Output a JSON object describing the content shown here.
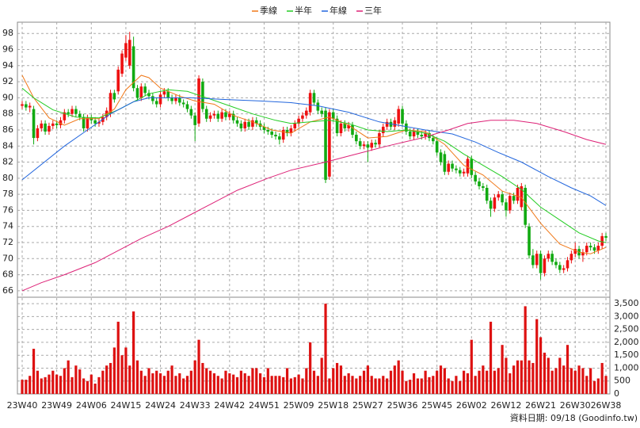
{
  "chart_data": {
    "type": "candlestick",
    "categories": [
      "23W40",
      null,
      null,
      null,
      null,
      null,
      null,
      null,
      null,
      "23W49",
      null,
      null,
      null,
      null,
      null,
      null,
      null,
      null,
      "24W06",
      null,
      null,
      null,
      null,
      null,
      null,
      null,
      null,
      "24W15",
      null,
      null,
      null,
      null,
      null,
      null,
      null,
      null,
      "24W24",
      null,
      null,
      null,
      null,
      null,
      null,
      null,
      null,
      "24W33",
      null,
      null,
      null,
      null,
      null,
      null,
      null,
      null,
      "24W42",
      null,
      null,
      null,
      null,
      null,
      null,
      null,
      null,
      "24W51",
      null,
      null,
      null,
      null,
      null,
      null,
      null,
      null,
      "25W09",
      null,
      null,
      null,
      null,
      null,
      null,
      null,
      null,
      "25W18",
      null,
      null,
      null,
      null,
      null,
      null,
      null,
      null,
      "25W27",
      null,
      null,
      null,
      null,
      null,
      null,
      null,
      null,
      "25W36",
      null,
      null,
      null,
      null,
      null,
      null,
      null,
      null,
      "25W45",
      null,
      null,
      null,
      null,
      null,
      null,
      null,
      null,
      "26W02",
      null,
      null,
      null,
      null,
      null,
      null,
      null,
      null,
      "26W12",
      null,
      null,
      null,
      null,
      null,
      null,
      null,
      null,
      "26W21",
      null,
      null,
      null,
      null,
      null,
      null,
      null,
      null,
      "26W30",
      null,
      null,
      null,
      null,
      null,
      null,
      null,
      "26W38"
    ],
    "candles": [
      [
        89.0,
        89.6,
        88.6,
        89.2
      ],
      [
        89.2,
        89.6,
        88.4,
        88.8
      ],
      [
        88.8,
        89.4,
        88.2,
        89.0
      ],
      [
        88.6,
        89.0,
        84.2,
        85.0
      ],
      [
        85.0,
        86.6,
        84.6,
        86.2
      ],
      [
        86.2,
        87.2,
        85.8,
        86.8
      ],
      [
        86.8,
        87.2,
        85.4,
        85.8
      ],
      [
        85.8,
        86.9,
        85.4,
        86.5
      ],
      [
        86.5,
        87.2,
        86.1,
        86.8
      ],
      [
        86.8,
        87.2,
        86.2,
        86.6
      ],
      [
        86.6,
        87.6,
        86.2,
        87.2
      ],
      [
        87.2,
        88.6,
        86.8,
        88.2
      ],
      [
        88.2,
        88.6,
        87.6,
        88.0
      ],
      [
        88.0,
        89.0,
        87.6,
        88.6
      ],
      [
        88.6,
        89.0,
        87.6,
        88.0
      ],
      [
        88.0,
        88.4,
        87.2,
        87.6
      ],
      [
        87.6,
        88.0,
        85.8,
        86.2
      ],
      [
        86.2,
        87.9,
        85.8,
        87.5
      ],
      [
        87.5,
        87.9,
        86.8,
        87.2
      ],
      [
        87.2,
        87.6,
        86.4,
        86.8
      ],
      [
        86.8,
        87.4,
        86.4,
        87.0
      ],
      [
        87.0,
        88.0,
        86.6,
        87.6
      ],
      [
        87.6,
        88.8,
        87.2,
        88.4
      ],
      [
        88.0,
        91.0,
        87.6,
        90.6
      ],
      [
        90.6,
        91.0,
        89.4,
        89.8
      ],
      [
        90.8,
        93.9,
        90.4,
        93.5
      ],
      [
        93.0,
        95.9,
        92.6,
        95.5
      ],
      [
        95.0,
        97.8,
        94.6,
        96.8
      ],
      [
        94.0,
        98.2,
        93.6,
        97.2
      ],
      [
        96.4,
        97.6,
        90.8,
        91.2
      ],
      [
        91.2,
        91.6,
        89.6,
        90.0
      ],
      [
        90.0,
        91.8,
        89.6,
        91.4
      ],
      [
        91.4,
        91.8,
        90.2,
        90.6
      ],
      [
        90.6,
        91.0,
        89.8,
        90.2
      ],
      [
        90.2,
        90.6,
        89.2,
        89.6
      ],
      [
        89.6,
        90.0,
        88.8,
        89.2
      ],
      [
        89.2,
        90.8,
        88.8,
        90.4
      ],
      [
        90.4,
        91.2,
        90.0,
        90.8
      ],
      [
        90.8,
        91.2,
        89.6,
        90.0
      ],
      [
        90.0,
        90.4,
        89.2,
        89.6
      ],
      [
        89.6,
        90.4,
        89.2,
        90.0
      ],
      [
        90.0,
        90.4,
        89.0,
        89.4
      ],
      [
        89.4,
        89.8,
        88.8,
        89.2
      ],
      [
        89.2,
        89.6,
        88.2,
        88.6
      ],
      [
        88.6,
        89.0,
        87.4,
        87.8
      ],
      [
        87.8,
        88.2,
        84.6,
        86.6
      ],
      [
        86.8,
        92.8,
        86.4,
        92.4
      ],
      [
        92.0,
        92.4,
        88.2,
        88.6
      ],
      [
        88.6,
        89.0,
        87.0,
        87.4
      ],
      [
        87.4,
        88.2,
        87.0,
        87.8
      ],
      [
        87.8,
        88.4,
        87.4,
        88.0
      ],
      [
        88.0,
        88.4,
        87.0,
        87.4
      ],
      [
        87.4,
        88.6,
        87.0,
        88.2
      ],
      [
        88.2,
        88.6,
        87.2,
        87.6
      ],
      [
        87.6,
        88.4,
        87.2,
        88.0
      ],
      [
        88.0,
        88.4,
        86.8,
        87.2
      ],
      [
        87.2,
        87.6,
        86.4,
        86.8
      ],
      [
        86.8,
        87.2,
        85.8,
        86.2
      ],
      [
        86.2,
        87.4,
        85.8,
        87.0
      ],
      [
        87.0,
        87.4,
        86.0,
        86.4
      ],
      [
        86.4,
        87.6,
        86.0,
        87.2
      ],
      [
        87.2,
        87.6,
        86.4,
        86.8
      ],
      [
        86.8,
        87.2,
        86.0,
        86.4
      ],
      [
        86.4,
        86.8,
        85.6,
        86.0
      ],
      [
        86.0,
        86.4,
        85.4,
        85.8
      ],
      [
        85.8,
        86.2,
        85.0,
        85.4
      ],
      [
        85.4,
        85.8,
        84.8,
        85.2
      ],
      [
        85.2,
        85.6,
        84.2,
        84.8
      ],
      [
        84.8,
        86.4,
        84.4,
        86.0
      ],
      [
        86.0,
        86.4,
        85.2,
        85.6
      ],
      [
        85.6,
        86.6,
        85.2,
        86.2
      ],
      [
        86.2,
        87.2,
        85.8,
        86.8
      ],
      [
        86.8,
        87.8,
        86.4,
        87.4
      ],
      [
        87.4,
        88.2,
        87.0,
        87.8
      ],
      [
        87.8,
        88.8,
        87.4,
        88.4
      ],
      [
        88.2,
        91.0,
        87.8,
        90.6
      ],
      [
        90.6,
        91.0,
        89.0,
        89.4
      ],
      [
        89.4,
        89.8,
        88.0,
        88.4
      ],
      [
        88.4,
        88.8,
        87.6,
        88.0
      ],
      [
        88.4,
        88.8,
        79.4,
        79.8
      ],
      [
        80.2,
        88.6,
        79.8,
        88.2
      ],
      [
        88.2,
        88.6,
        87.0,
        87.4
      ],
      [
        87.4,
        87.8,
        85.2,
        85.6
      ],
      [
        85.6,
        87.2,
        85.2,
        86.8
      ],
      [
        86.8,
        87.2,
        85.8,
        86.2
      ],
      [
        86.2,
        87.0,
        85.8,
        86.6
      ],
      [
        86.6,
        87.0,
        85.0,
        85.4
      ],
      [
        85.4,
        85.8,
        84.2,
        84.6
      ],
      [
        84.6,
        85.0,
        83.6,
        84.0
      ],
      [
        84.0,
        84.6,
        83.6,
        84.2
      ],
      [
        84.2,
        84.6,
        82.0,
        83.8
      ],
      [
        83.8,
        84.8,
        83.4,
        84.4
      ],
      [
        84.4,
        84.8,
        83.8,
        84.2
      ],
      [
        84.2,
        86.0,
        83.8,
        85.6
      ],
      [
        85.6,
        86.8,
        85.2,
        86.4
      ],
      [
        86.4,
        87.4,
        86.0,
        87.0
      ],
      [
        87.0,
        87.4,
        86.0,
        86.4
      ],
      [
        86.4,
        87.6,
        86.0,
        87.2
      ],
      [
        86.8,
        89.0,
        86.4,
        88.6
      ],
      [
        88.6,
        89.0,
        86.4,
        86.8
      ],
      [
        86.8,
        87.2,
        85.4,
        85.8
      ],
      [
        85.8,
        86.2,
        84.8,
        85.2
      ],
      [
        85.2,
        86.2,
        84.8,
        85.8
      ],
      [
        85.8,
        86.2,
        85.0,
        85.4
      ],
      [
        85.4,
        85.8,
        84.8,
        85.2
      ],
      [
        85.2,
        86.0,
        84.8,
        85.6
      ],
      [
        85.6,
        86.0,
        84.6,
        85.0
      ],
      [
        85.0,
        85.4,
        84.2,
        84.6
      ],
      [
        84.6,
        85.0,
        82.8,
        83.2
      ],
      [
        83.2,
        83.6,
        81.6,
        82.0
      ],
      [
        83.0,
        83.4,
        80.4,
        80.8
      ],
      [
        80.8,
        82.2,
        80.4,
        81.8
      ],
      [
        81.8,
        82.2,
        80.8,
        81.2
      ],
      [
        81.2,
        81.6,
        80.6,
        81.0
      ],
      [
        81.0,
        81.4,
        80.2,
        80.6
      ],
      [
        80.6,
        81.2,
        80.2,
        80.8
      ],
      [
        80.6,
        82.8,
        80.2,
        82.4
      ],
      [
        82.4,
        82.8,
        80.0,
        80.4
      ],
      [
        80.4,
        80.8,
        79.2,
        79.6
      ],
      [
        79.6,
        80.0,
        78.6,
        79.0
      ],
      [
        79.0,
        79.4,
        78.4,
        78.8
      ],
      [
        78.8,
        79.2,
        76.8,
        77.2
      ],
      [
        77.2,
        77.6,
        75.2,
        76.2
      ],
      [
        76.2,
        78.0,
        75.8,
        77.6
      ],
      [
        77.6,
        78.4,
        77.2,
        78.0
      ],
      [
        78.0,
        78.4,
        76.6,
        77.0
      ],
      [
        77.0,
        77.4,
        75.2,
        76.0
      ],
      [
        76.0,
        78.2,
        75.6,
        77.8
      ],
      [
        77.8,
        78.2,
        76.8,
        77.2
      ],
      [
        77.2,
        79.2,
        76.8,
        78.8
      ],
      [
        76.4,
        79.4,
        76.0,
        79.0
      ],
      [
        78.8,
        79.2,
        73.8,
        74.2
      ],
      [
        74.0,
        74.4,
        70.0,
        70.4
      ],
      [
        70.4,
        71.2,
        68.8,
        69.2
      ],
      [
        69.2,
        71.0,
        68.8,
        70.6
      ],
      [
        70.6,
        71.0,
        67.4,
        68.2
      ],
      [
        68.2,
        70.4,
        67.8,
        70.0
      ],
      [
        70.0,
        71.0,
        69.6,
        70.6
      ],
      [
        70.6,
        71.0,
        69.2,
        69.6
      ],
      [
        69.6,
        70.0,
        68.8,
        69.2
      ],
      [
        69.2,
        69.6,
        68.2,
        68.6
      ],
      [
        68.6,
        69.2,
        68.2,
        68.8
      ],
      [
        68.8,
        70.2,
        68.4,
        69.8
      ],
      [
        69.8,
        71.0,
        69.4,
        70.6
      ],
      [
        70.6,
        72.0,
        70.2,
        71.2
      ],
      [
        71.2,
        71.6,
        70.0,
        70.4
      ],
      [
        70.4,
        71.2,
        69.6,
        70.8
      ],
      [
        70.8,
        72.0,
        70.4,
        71.6
      ],
      [
        71.6,
        72.0,
        71.0,
        71.4
      ],
      [
        71.4,
        71.8,
        70.6,
        71.0
      ],
      [
        71.0,
        72.0,
        70.6,
        71.6
      ],
      [
        71.6,
        73.2,
        71.2,
        72.8
      ],
      [
        72.8,
        73.2,
        72.2,
        72.6
      ]
    ],
    "up_color": "#ee1111",
    "down_color": "#11aa11",
    "lines": [
      {
        "name": "季線",
        "color": "#f07818",
        "x": [
          0,
          3,
          7,
          11,
          15,
          20,
          24,
          27,
          31,
          33,
          36,
          41,
          45,
          50,
          55,
          60,
          65,
          70,
          75,
          80,
          85,
          90,
          95,
          100,
          105,
          110,
          115,
          120,
          125,
          130,
          135,
          140,
          145,
          148,
          150,
          152
        ],
        "values": [
          92.8,
          90,
          87.5,
          86.6,
          87.4,
          87.4,
          88.6,
          91,
          92.8,
          92.5,
          91.2,
          90.2,
          89.6,
          89.2,
          87.8,
          87,
          86,
          85.6,
          87,
          87.6,
          86.6,
          85,
          85.2,
          86,
          85.8,
          84.2,
          81.6,
          80.4,
          78.4,
          77.6,
          74.4,
          71.8,
          70.8,
          70.6,
          71,
          71.4
        ]
      },
      {
        "name": "半年",
        "color": "#22cc22",
        "x": [
          0,
          3,
          8,
          14,
          20,
          25,
          29,
          33,
          38,
          43,
          48,
          54,
          60,
          66,
          70,
          75,
          80,
          85,
          90,
          95,
          100,
          105,
          110,
          115,
          120,
          125,
          130,
          135,
          140,
          145,
          150,
          152
        ],
        "values": [
          91.2,
          90,
          88.5,
          87.6,
          87.5,
          88.5,
          89.5,
          90.5,
          91,
          90.8,
          90,
          89,
          88,
          87.2,
          86.8,
          87,
          87.2,
          86.8,
          86,
          85.8,
          86,
          85.6,
          84.6,
          83,
          81.6,
          80.2,
          78.6,
          76.4,
          74.8,
          73.2,
          72.2,
          72
        ]
      },
      {
        "name": "年線",
        "color": "#2266dd",
        "x": [
          0,
          11,
          17,
          23,
          29,
          33,
          44,
          52,
          62,
          70,
          77,
          85,
          93,
          99,
          105,
          112,
          118,
          124,
          130,
          137,
          143,
          148,
          152
        ],
        "values": [
          79.8,
          84,
          86,
          88,
          89.5,
          90,
          90,
          89.8,
          89.6,
          89.4,
          89,
          88.2,
          87,
          86.5,
          86,
          85.5,
          84.5,
          83.2,
          82,
          80.2,
          78.8,
          77.8,
          76.6
        ]
      },
      {
        "name": "三年",
        "color": "#dd2277",
        "x": [
          0,
          5,
          11,
          19,
          25,
          31,
          38,
          44,
          50,
          56,
          64,
          70,
          79,
          87,
          95,
          104,
          111,
          116,
          122,
          128,
          134,
          141,
          147,
          152
        ],
        "values": [
          66,
          67,
          68,
          69.5,
          71,
          72.5,
          74,
          75.5,
          77,
          78.5,
          80,
          81,
          82,
          83,
          84,
          85,
          86,
          86.8,
          87.2,
          87.2,
          86.8,
          85.8,
          84.8,
          84.2
        ]
      }
    ],
    "ylim": [
      65.2,
      99.4
    ],
    "yticks": [
      66,
      68,
      70,
      72,
      74,
      76,
      78,
      80,
      82,
      84,
      86,
      88,
      90,
      92,
      94,
      96,
      98
    ],
    "grid": true,
    "volume": {
      "color": "#dd1111",
      "values": [
        550,
        550,
        700,
        1750,
        900,
        600,
        650,
        750,
        900,
        750,
        700,
        1000,
        1300,
        650,
        1100,
        950,
        600,
        500,
        750,
        400,
        650,
        900,
        1100,
        1200,
        1800,
        2800,
        1500,
        1800,
        1100,
        3200,
        1300,
        900,
        700,
        1000,
        800,
        900,
        800,
        700,
        900,
        1100,
        700,
        800,
        600,
        700,
        900,
        1300,
        2100,
        1200,
        1000,
        900,
        800,
        700,
        600,
        900,
        800,
        750,
        650,
        900,
        800,
        700,
        1000,
        1000,
        800,
        650,
        1000,
        700,
        700,
        700,
        650,
        1000,
        600,
        650,
        750,
        600,
        1000,
        2000,
        900,
        700,
        1400,
        3500,
        600,
        1000,
        1200,
        1100,
        700,
        800,
        700,
        600,
        700,
        900,
        1100,
        700,
        600,
        600,
        700,
        600,
        900,
        1100,
        1300,
        900,
        500,
        550,
        800,
        600,
        600,
        900,
        650,
        700,
        900,
        1100,
        1000,
        600,
        500,
        700,
        500,
        900,
        800,
        2100,
        700,
        900,
        1100,
        900,
        2800,
        900,
        1000,
        1900,
        1400,
        800,
        1100,
        1300,
        1300,
        3400,
        1300,
        1200,
        2900,
        2200,
        1600,
        1400,
        900,
        1000,
        1400,
        1100,
        1900,
        1000,
        900,
        1100,
        1000,
        700,
        1000,
        500,
        600,
        1200,
        700
      ],
      "ylim": [
        0,
        3750
      ],
      "yticks": [
        0,
        500,
        {
          "value": 1000,
          "label": "1,000"
        },
        {
          "value": 1500,
          "label": "1,500"
        },
        {
          "value": 2000,
          "label": "2,000"
        },
        {
          "value": 2500,
          "label": "2,500"
        },
        {
          "value": 3000,
          "label": "3,000"
        },
        {
          "value": 3500,
          "label": "3,500"
        }
      ]
    },
    "footnote": "資料日期: 09/18 (Goodinfo.tw)"
  }
}
